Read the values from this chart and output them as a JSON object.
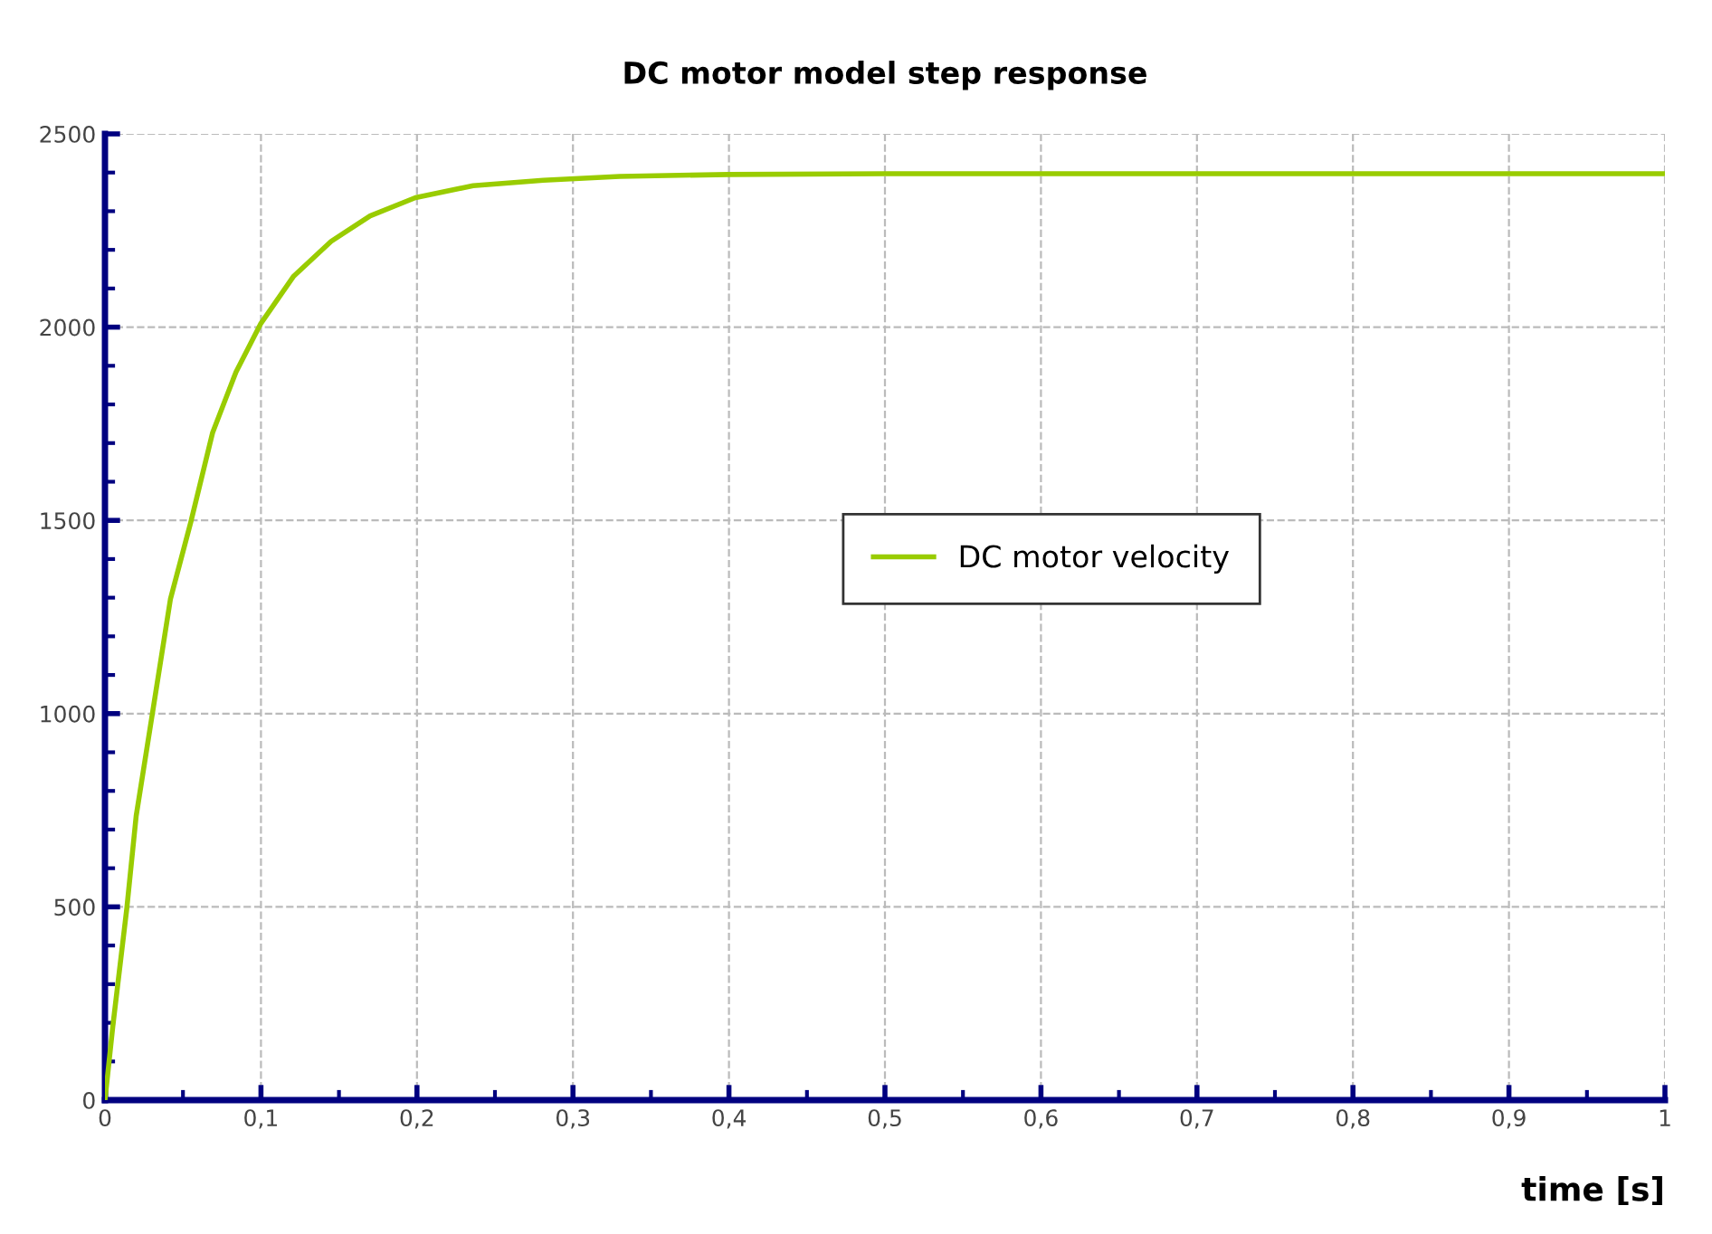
{
  "chart_data": {
    "type": "line",
    "title": "DC motor model step response",
    "xlabel": "time [s]",
    "series": [
      {
        "name": "DC motor velocity",
        "color": "#99cc00",
        "x": [
          0,
          0.005,
          0.014,
          0.02,
          0.03,
          0.042,
          0.055,
          0.069,
          0.084,
          0.1,
          0.121,
          0.145,
          0.17,
          0.199,
          0.236,
          0.281,
          0.33,
          0.4,
          0.5,
          0.6,
          0.7,
          0.8,
          0.9,
          1
        ],
        "values": [
          0,
          190,
          496,
          735,
          990,
          1297,
          1495,
          1727,
          1884,
          2010,
          2132,
          2222,
          2288,
          2335,
          2366,
          2380,
          2390,
          2395,
          2397,
          2397,
          2397,
          2397,
          2397,
          2397
        ]
      }
    ],
    "xlim": [
      0,
      1
    ],
    "ylim": [
      0,
      2500
    ],
    "xticks": [
      0,
      {
        "value": 0.1,
        "label": "0,1"
      },
      {
        "value": 0.2,
        "label": "0,2"
      },
      {
        "value": 0.3,
        "label": "0,3"
      },
      {
        "value": 0.4,
        "label": "0,4"
      },
      {
        "value": 0.5,
        "label": "0,5"
      },
      {
        "value": 0.6,
        "label": "0,6"
      },
      {
        "value": 0.7,
        "label": "0,7"
      },
      {
        "value": 0.8,
        "label": "0,8"
      },
      {
        "value": 0.9,
        "label": "0,9"
      },
      1
    ],
    "yticks": [
      0,
      500,
      1000,
      1500,
      2000,
      2500
    ],
    "grid": true,
    "legend": "center right",
    "marker": "none",
    "line_style": "solid"
  }
}
